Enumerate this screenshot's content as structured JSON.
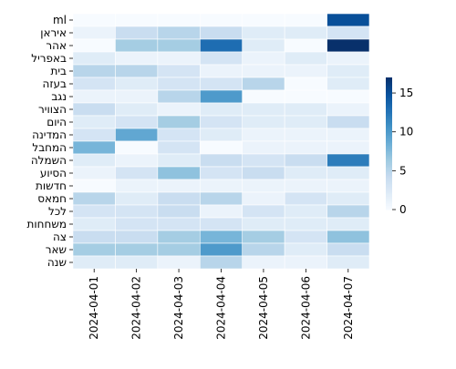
{
  "chart_data": {
    "type": "heatmap",
    "title": "",
    "xlabel": "",
    "ylabel": "",
    "x_categories": [
      "2024-04-01",
      "2024-04-02",
      "2024-04-03",
      "2024-04-04",
      "2024-04-05",
      "2024-04-06",
      "2024-04-07"
    ],
    "y_categories": [
      "ml",
      "איראן",
      "אהר",
      "באפריל",
      "בית",
      "בעזה",
      "נגב",
      "הצוויר",
      "היום",
      "המדינה",
      "המחבל",
      "השמלה",
      "הסיוע",
      "חדשות",
      "חמאס",
      "לכל",
      "משחחות",
      "צה",
      "שאר",
      "שנה"
    ],
    "values": [
      [
        0,
        0,
        0,
        0,
        0,
        0,
        15
      ],
      [
        1,
        4,
        5,
        4,
        2,
        2,
        3
      ],
      [
        0,
        6,
        6,
        13,
        2,
        0,
        17
      ],
      [
        2,
        1,
        1,
        3,
        1,
        2,
        1
      ],
      [
        5,
        5,
        3,
        1,
        1,
        1,
        2
      ],
      [
        3,
        2,
        3,
        3,
        5,
        0,
        2
      ],
      [
        1,
        1,
        5,
        10,
        0,
        0,
        0
      ],
      [
        4,
        2,
        1,
        2,
        2,
        2,
        1
      ],
      [
        2,
        3,
        6,
        3,
        2,
        2,
        4
      ],
      [
        3,
        9,
        3,
        2,
        1,
        1,
        1
      ],
      [
        8,
        0,
        3,
        0,
        1,
        1,
        1
      ],
      [
        2,
        1,
        2,
        4,
        3,
        4,
        12
      ],
      [
        1,
        3,
        7,
        3,
        4,
        2,
        2
      ],
      [
        0,
        1,
        1,
        1,
        1,
        1,
        1
      ],
      [
        5,
        2,
        4,
        5,
        1,
        3,
        2
      ],
      [
        3,
        3,
        4,
        1,
        3,
        2,
        5
      ],
      [
        2,
        3,
        3,
        3,
        2,
        2,
        2
      ],
      [
        4,
        4,
        6,
        8,
        6,
        3,
        7
      ],
      [
        6,
        6,
        6,
        10,
        5,
        2,
        4
      ],
      [
        2,
        2,
        1,
        5,
        1,
        1,
        2
      ]
    ],
    "colorbar": {
      "ticks": [
        0,
        5,
        10,
        15
      ],
      "vmin": 0,
      "vmax": 17,
      "colormap": "Blues"
    },
    "grid": false
  }
}
